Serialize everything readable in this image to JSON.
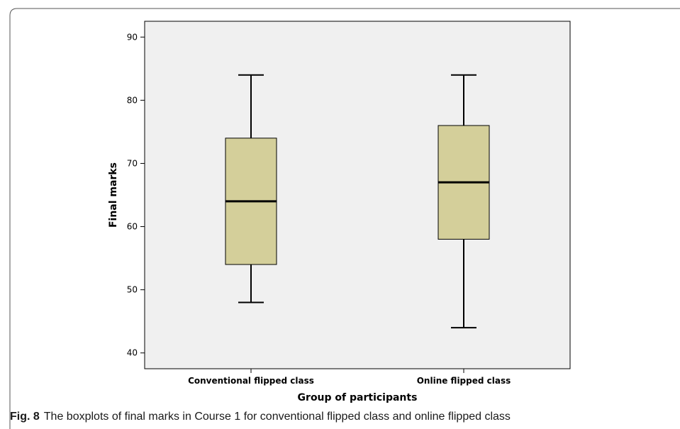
{
  "chart_data": {
    "type": "boxplot",
    "categories": [
      "Conventional flipped class",
      "Online flipped class"
    ],
    "series": [
      {
        "category": "Conventional flipped class",
        "min": 48,
        "q1": 54,
        "median": 64,
        "q3": 74,
        "max": 84
      },
      {
        "category": "Online flipped class",
        "min": 44,
        "q1": 58,
        "median": 67,
        "q3": 76,
        "max": 84
      }
    ],
    "xlabel": "Group of participants",
    "ylabel": "Final marks",
    "ylim": [
      37.5,
      92.5
    ],
    "yticks": [
      40,
      50,
      60,
      70,
      80,
      90
    ],
    "grid": false,
    "colors": {
      "box_fill": "#d4cf9a",
      "plot_background": "#f0f0f0",
      "stroke": "#000000"
    }
  },
  "caption": {
    "label": "Fig. 8",
    "text": "The boxplots of final marks in Course 1 for conventional flipped class and online flipped class"
  }
}
